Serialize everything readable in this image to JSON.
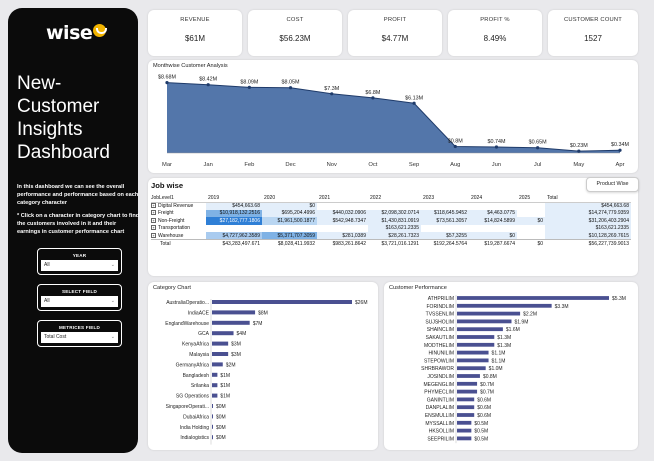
{
  "sidebar": {
    "logo_text": "wise",
    "title": "New-Customer Insights Dashboard",
    "description": "In this dashboard we can see the overall performance and performance based on each category  character",
    "note": "* Click on a character in category chart to find the customers involved in it and their earnings in customer performance chart",
    "filters": [
      {
        "label": "YEAR",
        "value": "All"
      },
      {
        "label": "SELECT FIELD",
        "value": "All"
      },
      {
        "label": "METRICES FIELD",
        "value": "Total Cost"
      }
    ]
  },
  "kpis": [
    {
      "title": "REVENUE",
      "value": "$61M"
    },
    {
      "title": "COST",
      "value": "$56.23M"
    },
    {
      "title": "PROFIT",
      "value": "$4.77M"
    },
    {
      "title": "PROFIT %",
      "value": "8.49%"
    },
    {
      "title": "CUSTOMER COUNT",
      "value": "1527"
    }
  ],
  "monthwise": {
    "title": "Monthwise Customer Analysis",
    "chart_data": {
      "type": "area",
      "categories": [
        "Mar",
        "Jan",
        "Feb",
        "Dec",
        "Nov",
        "Oct",
        "Sep",
        "Aug",
        "Jun",
        "Jul",
        "May",
        "Apr"
      ],
      "values": [
        8.68,
        8.42,
        8.09,
        8.05,
        7.3,
        6.8,
        6.13,
        0.8,
        0.74,
        0.65,
        0.23,
        0.34
      ],
      "data_labels": [
        "$8.68M",
        "$8.42M",
        "$8.09M",
        "$8.05M",
        "$7.3M",
        "$6.8M",
        "$6.13M",
        "$0.8M",
        "$0.74M",
        "$0.65M",
        "$0.23M",
        "$0.34M"
      ],
      "ylim": [
        0,
        9
      ],
      "color": "#4a6fa5"
    }
  },
  "jobwise": {
    "title": "Job wise",
    "button": "Product Wise",
    "headers": [
      "JobLevel1",
      "2019",
      "2020",
      "2021",
      "2022",
      "2023",
      "2024",
      "2025",
      "Total"
    ],
    "rows": [
      {
        "label": "Digital Revenue",
        "cells": [
          "$454,663.68",
          "$0",
          "",
          "",
          "",
          "",
          "",
          "$454,663.68"
        ]
      },
      {
        "label": "Freight",
        "cells": [
          "$10,918,132.2516",
          "$695,204.4996",
          "$440,032.0906",
          "$2,098,302.0714",
          "$118,645.9452",
          "$4,463.0775",
          "",
          "$14,274,779.9359"
        ]
      },
      {
        "label": "Non-Freight",
        "cells": [
          "$27,182,777.1806",
          "$1,961,500.1877",
          "$542,948.7347",
          "$1,430,831.0919",
          "$73,561.3057",
          "$14,824.5899",
          "$0",
          "$31,206,403.2904"
        ]
      },
      {
        "label": "Transportation",
        "cells": [
          "",
          "",
          "",
          "$163,621.2335",
          "",
          "",
          "",
          "$163,621.2335"
        ]
      },
      {
        "label": "Warehouse",
        "cells": [
          "$4,727,962.3589",
          "$5,371,707.3059",
          "$281,0389",
          "$28,261.7323",
          "$57,3255",
          "$0",
          "",
          "$10,128,269.7615"
        ]
      },
      {
        "label": "Total",
        "cells": [
          "$43,283,497.671",
          "$8,028,411.9932",
          "$983,261.8642",
          "$3,721,016.1291",
          "$192,264.5764",
          "$19,287.6674",
          "$0",
          "$56,227,739.9013"
        ]
      }
    ]
  },
  "category_chart": {
    "title": "Category Chart",
    "chart_data": {
      "type": "bar",
      "orientation": "horizontal",
      "categories": [
        "AustraliaOperatio...",
        "IndiaACE",
        "EnglandWarehouse",
        "GCA",
        "KenyaAfrica",
        "Malaysia",
        "GermanyAfrica",
        "Bangladesh",
        "Srilanka",
        "SG Operations",
        "SingaporeOperati...",
        "DubaiAfrica",
        "India Holding",
        "Indialogistics"
      ],
      "values": [
        26,
        8,
        7,
        4,
        3,
        3,
        2,
        1,
        1,
        1,
        0,
        0,
        0,
        0
      ],
      "data_labels": [
        "$26M",
        "$8M",
        "$7M",
        "$4M",
        "$3M",
        "$3M",
        "$2M",
        "$1M",
        "$1M",
        "$1M",
        "$0M",
        "$0M",
        "$0M",
        "$0M"
      ],
      "color": "#4a5091"
    }
  },
  "customer_performance": {
    "title": "Customer Performance",
    "chart_data": {
      "type": "bar",
      "orientation": "horizontal",
      "categories": [
        "ATHPRILIM",
        "FORINDLIM",
        "TVSSENLIM",
        "SUJSHOLIM",
        "SHAINCLIM",
        "SAKAUTLIM",
        "MODTHELIM",
        "HINUNILIM",
        "STEPOWLIM",
        "SHRBRAWOR",
        "JOSINDLIM",
        "MEGENGLIM",
        "PHYMECLIM",
        "GANINTLIM",
        "DANPLALIM",
        "ENSMULLIM",
        "MYSSALLIM",
        "HKSOLLIM",
        "SEEPRILIM"
      ],
      "values": [
        5.3,
        3.3,
        2.2,
        1.9,
        1.6,
        1.3,
        1.3,
        1.1,
        1.1,
        1.0,
        0.8,
        0.7,
        0.7,
        0.6,
        0.6,
        0.6,
        0.5,
        0.5,
        0.5
      ],
      "data_labels": [
        "$5.3M",
        "$3.3M",
        "$2.2M",
        "$1.9M",
        "$1.6M",
        "$1.3M",
        "$1.3M",
        "$1.1M",
        "$1.1M",
        "$1.0M",
        "$0.8M",
        "$0.7M",
        "$0.7M",
        "$0.6M",
        "$0.6M",
        "$0.6M",
        "$0.5M",
        "$0.5M",
        "$0.5M"
      ],
      "color": "#4a5091"
    }
  }
}
